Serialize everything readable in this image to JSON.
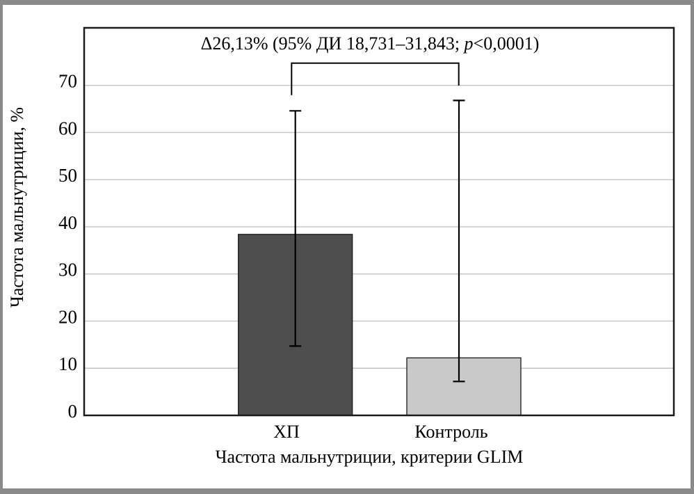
{
  "figure": {
    "frame_color": "#8a8a8a",
    "background_color": "#ffffff"
  },
  "annotation": {
    "before_p": "Δ26,13% (95% ДИ 18,731–31,843; ",
    "p": "p",
    "after_p": "<0,0001)",
    "full_text": "Δ26,13% (95% ДИ 18,731–31,843; p<0,0001)"
  },
  "axes": {
    "y_title": "Частота мальнутриции, %",
    "x_title": "Частота мальнутриции, критерии GLIM"
  },
  "chart_data": {
    "type": "bar",
    "title": "Δ26,13% (95% ДИ 18,731–31,843; p<0,0001)",
    "categories": [
      "ХП",
      "Контроль"
    ],
    "values": [
      38.4,
      12.2
    ],
    "error_bars": [
      {
        "low": 14.7,
        "high": 64.6
      },
      {
        "low": 7.2,
        "high": 66.8
      }
    ],
    "bar_colors": [
      "#4d4d4d",
      "#c9c9c9"
    ],
    "bar_border_color": "#1a1a1a",
    "xlabel": "Частота мальнутриции, критерии GLIM",
    "ylabel": "Частота мальнутриции, %",
    "ylim": [
      0,
      82
    ],
    "yticks": [
      0,
      10,
      20,
      30,
      40,
      50,
      60,
      70
    ],
    "grid": "horizontal",
    "gridline_color": "#c3c3c3",
    "plot_border_color": "#1a1a1a",
    "error_bar_color": "#000000",
    "bracket_color": "#000000",
    "legend_position": "none"
  }
}
